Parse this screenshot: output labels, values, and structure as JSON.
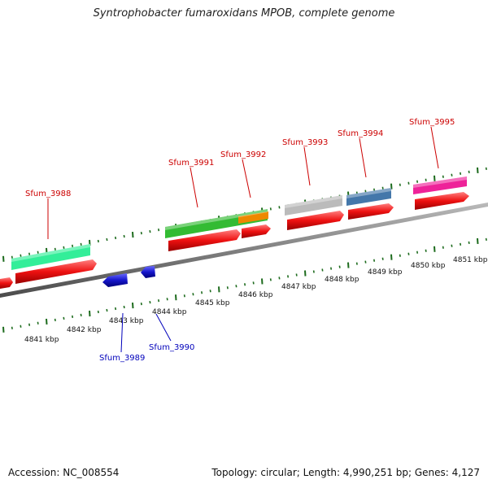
{
  "title": "Syntrophobacter fumaroxidans MPOB, complete genome",
  "footer": {
    "accession": "Accession: NC_008554",
    "summary": "Topology: circular; Length: 4,990,251 bp; Genes: 4,127"
  },
  "colors": {
    "backbone": "#808080",
    "cds": "#ee1111",
    "reverse": "#1616cc",
    "label_forward": "#cc0000",
    "label_reverse": "#0000bb",
    "tick": "#1d6b1d"
  },
  "scale": {
    "unit": "kbp",
    "tick_labels": [
      "4841 kbp",
      "4842 kbp",
      "4843 kbp",
      "4844 kbp",
      "4845 kbp",
      "4846 kbp",
      "4847 kbp",
      "4848 kbp",
      "4849 kbp",
      "4850 kbp",
      "4851 kbp"
    ],
    "tick_values_kbp": [
      4841,
      4842,
      4843,
      4844,
      4845,
      4846,
      4847,
      4848,
      4849,
      4850,
      4851
    ]
  },
  "genes_forward": [
    {
      "name": "Sfum_3988",
      "color": "#33ee99"
    },
    {
      "name": "Sfum_3991",
      "color": "#33bb33"
    },
    {
      "name": "Sfum_3992",
      "color": "#ee8800"
    },
    {
      "name": "Sfum_3993",
      "color": "#bbbbbb"
    },
    {
      "name": "Sfum_3994",
      "color": "#4477aa"
    },
    {
      "name": "Sfum_3995",
      "color": "#ee2299"
    }
  ],
  "genes_reverse": [
    {
      "name": "Sfum_3989"
    },
    {
      "name": "Sfum_3990"
    }
  ]
}
